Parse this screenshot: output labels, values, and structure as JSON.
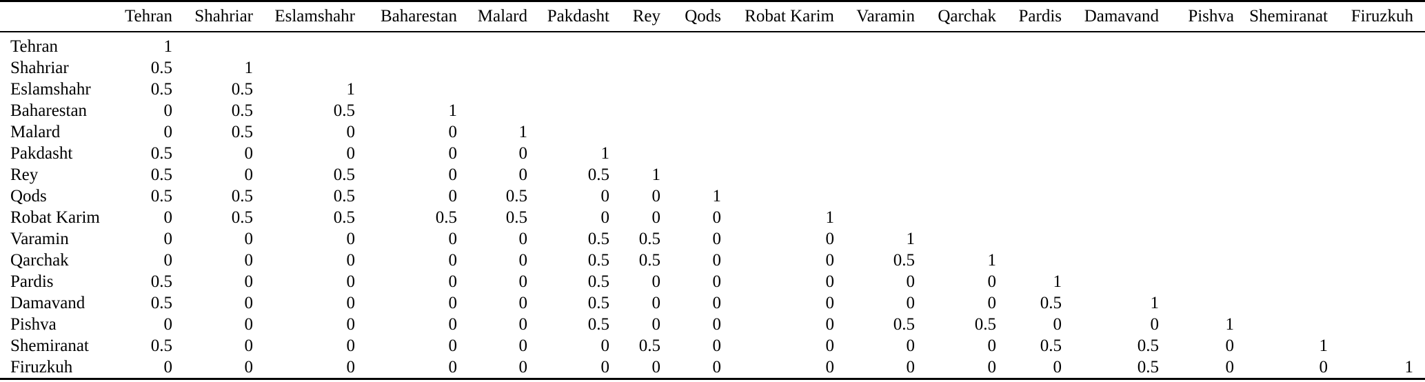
{
  "colors": {
    "text": "#000000",
    "background": "#ffffff",
    "rule": "#000000"
  },
  "table": {
    "columns": [
      "Tehran",
      "Shahriar",
      "Eslamshahr",
      "Baharestan",
      "Malard",
      "Pakdasht",
      "Rey",
      "Qods",
      "Robat Karim",
      "Varamin",
      "Qarchak",
      "Pardis",
      "Damavand",
      "Pishva",
      "Shemiranat",
      "Firuzkuh"
    ],
    "rows": [
      {
        "label": "Tehran",
        "values": [
          "1"
        ]
      },
      {
        "label": "Shahriar",
        "values": [
          "0.5",
          "1"
        ]
      },
      {
        "label": "Eslamshahr",
        "values": [
          "0.5",
          "0.5",
          "1"
        ]
      },
      {
        "label": "Baharestan",
        "values": [
          "0",
          "0.5",
          "0.5",
          "1"
        ]
      },
      {
        "label": "Malard",
        "values": [
          "0",
          "0.5",
          "0",
          "0",
          "1"
        ]
      },
      {
        "label": "Pakdasht",
        "values": [
          "0.5",
          "0",
          "0",
          "0",
          "0",
          "1"
        ]
      },
      {
        "label": "Rey",
        "values": [
          "0.5",
          "0",
          "0.5",
          "0",
          "0",
          "0.5",
          "1"
        ]
      },
      {
        "label": "Qods",
        "values": [
          "0.5",
          "0.5",
          "0.5",
          "0",
          "0.5",
          "0",
          "0",
          "1"
        ]
      },
      {
        "label": "Robat Karim",
        "values": [
          "0",
          "0.5",
          "0.5",
          "0.5",
          "0.5",
          "0",
          "0",
          "0",
          "1"
        ]
      },
      {
        "label": "Varamin",
        "values": [
          "0",
          "0",
          "0",
          "0",
          "0",
          "0.5",
          "0.5",
          "0",
          "0",
          "1"
        ]
      },
      {
        "label": "Qarchak",
        "values": [
          "0",
          "0",
          "0",
          "0",
          "0",
          "0.5",
          "0.5",
          "0",
          "0",
          "0.5",
          "1"
        ]
      },
      {
        "label": "Pardis",
        "values": [
          "0.5",
          "0",
          "0",
          "0",
          "0",
          "0.5",
          "0",
          "0",
          "0",
          "0",
          "0",
          "1"
        ]
      },
      {
        "label": "Damavand",
        "values": [
          "0.5",
          "0",
          "0",
          "0",
          "0",
          "0.5",
          "0",
          "0",
          "0",
          "0",
          "0",
          "0.5",
          "1"
        ]
      },
      {
        "label": "Pishva",
        "values": [
          "0",
          "0",
          "0",
          "0",
          "0",
          "0.5",
          "0",
          "0",
          "0",
          "0.5",
          "0.5",
          "0",
          "0",
          "1"
        ]
      },
      {
        "label": "Shemiranat",
        "values": [
          "0.5",
          "0",
          "0",
          "0",
          "0",
          "0",
          "0.5",
          "0",
          "0",
          "0",
          "0",
          "0.5",
          "0.5",
          "0",
          "1"
        ]
      },
      {
        "label": "Firuzkuh",
        "values": [
          "0",
          "0",
          "0",
          "0",
          "0",
          "0",
          "0",
          "0",
          "0",
          "0",
          "0",
          "0",
          "0.5",
          "0",
          "0",
          "1"
        ]
      }
    ]
  }
}
